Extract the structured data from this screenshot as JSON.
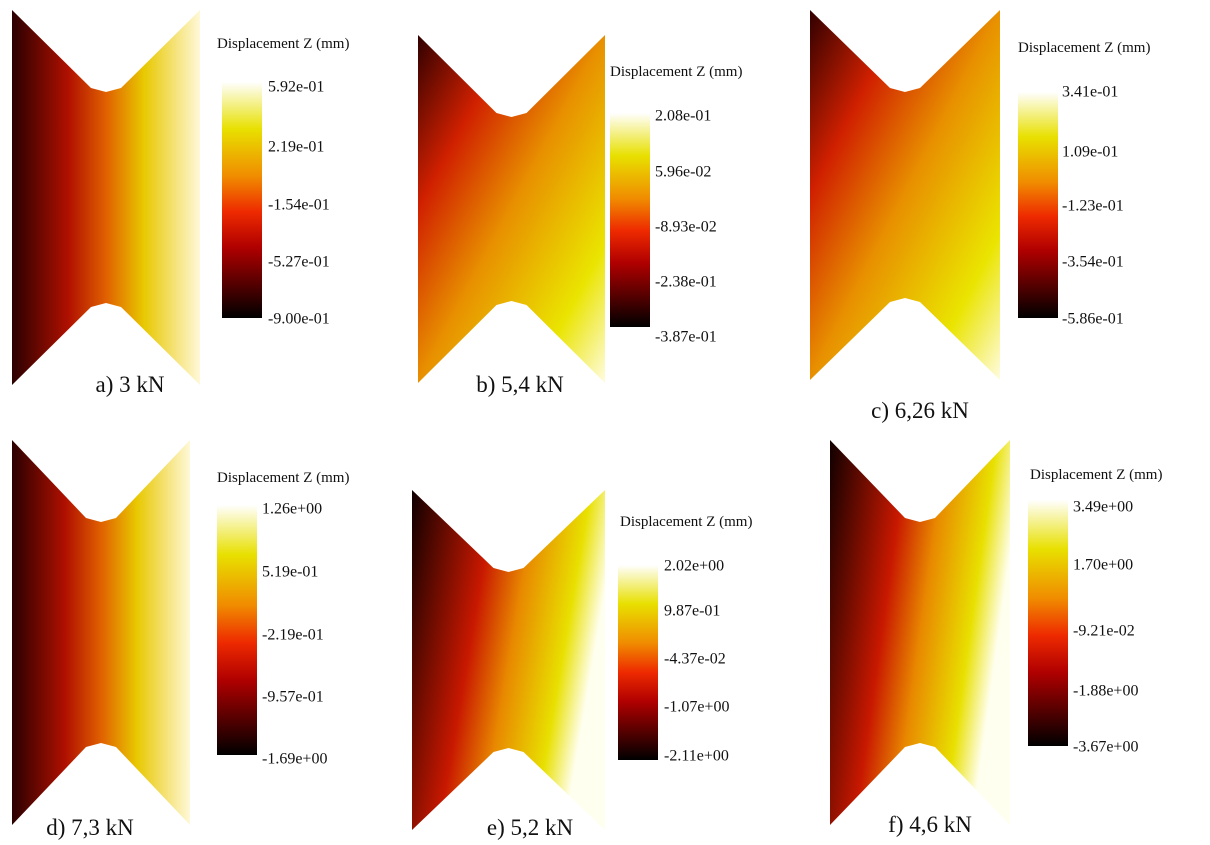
{
  "panels": [
    {
      "legend_title": "Displacement Z (mm)",
      "ticks": [
        "5.92e-01",
        "2.19e-01",
        "-1.54e-01",
        "-5.27e-01",
        "-9.00e-01"
      ],
      "caption": "a) 3 kN"
    },
    {
      "legend_title": "Displacement Z (mm)",
      "ticks": [
        "2.08e-01",
        "5.96e-02",
        "-8.93e-02",
        "-2.38e-01",
        "-3.87e-01"
      ],
      "caption": "b) 5,4 kN"
    },
    {
      "legend_title": "Displacement Z (mm)",
      "ticks": [
        "3.41e-01",
        "1.09e-01",
        "-1.23e-01",
        "-3.54e-01",
        "-5.86e-01"
      ],
      "caption": "c) 6,26 kN"
    },
    {
      "legend_title": "Displacement Z (mm)",
      "ticks": [
        "1.26e+00",
        "5.19e-01",
        "-2.19e-01",
        "-9.57e-01",
        "-1.69e+00"
      ],
      "caption": "d) 7,3 kN"
    },
    {
      "legend_title": "Displacement Z (mm)",
      "ticks": [
        "2.02e+00",
        "9.87e-01",
        "-4.37e-02",
        "-1.07e+00",
        "-2.11e+00"
      ],
      "caption": "e) 5,2 kN"
    },
    {
      "legend_title": "Displacement Z (mm)",
      "ticks": [
        "3.49e+00",
        "1.70e+00",
        "-9.21e-02",
        "-1.88e+00",
        "-3.67e+00"
      ],
      "caption": "f) 4,6 kN"
    }
  ]
}
